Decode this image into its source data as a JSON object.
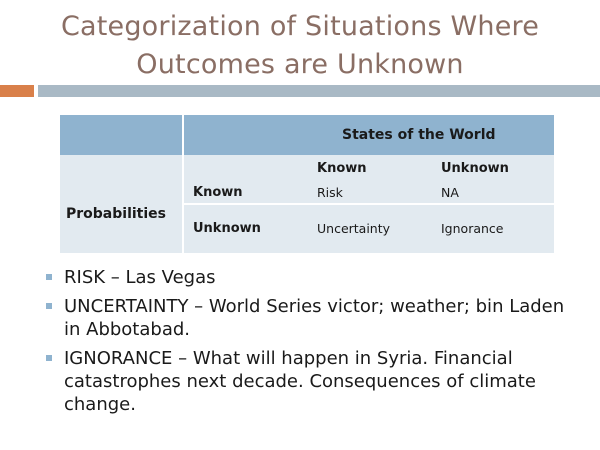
{
  "title": {
    "line1": "Categorization of Situations Where",
    "line2": "Outcomes are Unknown"
  },
  "table": {
    "header": "States of the World",
    "row_group_label": "Probabilities",
    "columns": [
      "Known",
      "Unknown"
    ],
    "rows": [
      {
        "label": "Known",
        "cells": [
          "Risk",
          "NA"
        ]
      },
      {
        "label": "Unknown",
        "cells": [
          "Uncertainty",
          "Ignorance"
        ]
      }
    ]
  },
  "bullets": [
    "RISK – Las Vegas",
    "UNCERTAINTY – World Series victor; weather; bin Laden in Abbotabad.",
    "IGNORANCE – What will happen in Syria.  Financial catastrophes next decade.  Consequences of climate change."
  ],
  "colors": {
    "title": "#8a6e64",
    "accent_bar": "#d9804a",
    "rule_bar": "#a9b9c5",
    "table_header": "#8fb3cf",
    "table_body": "#e2eaf0"
  }
}
